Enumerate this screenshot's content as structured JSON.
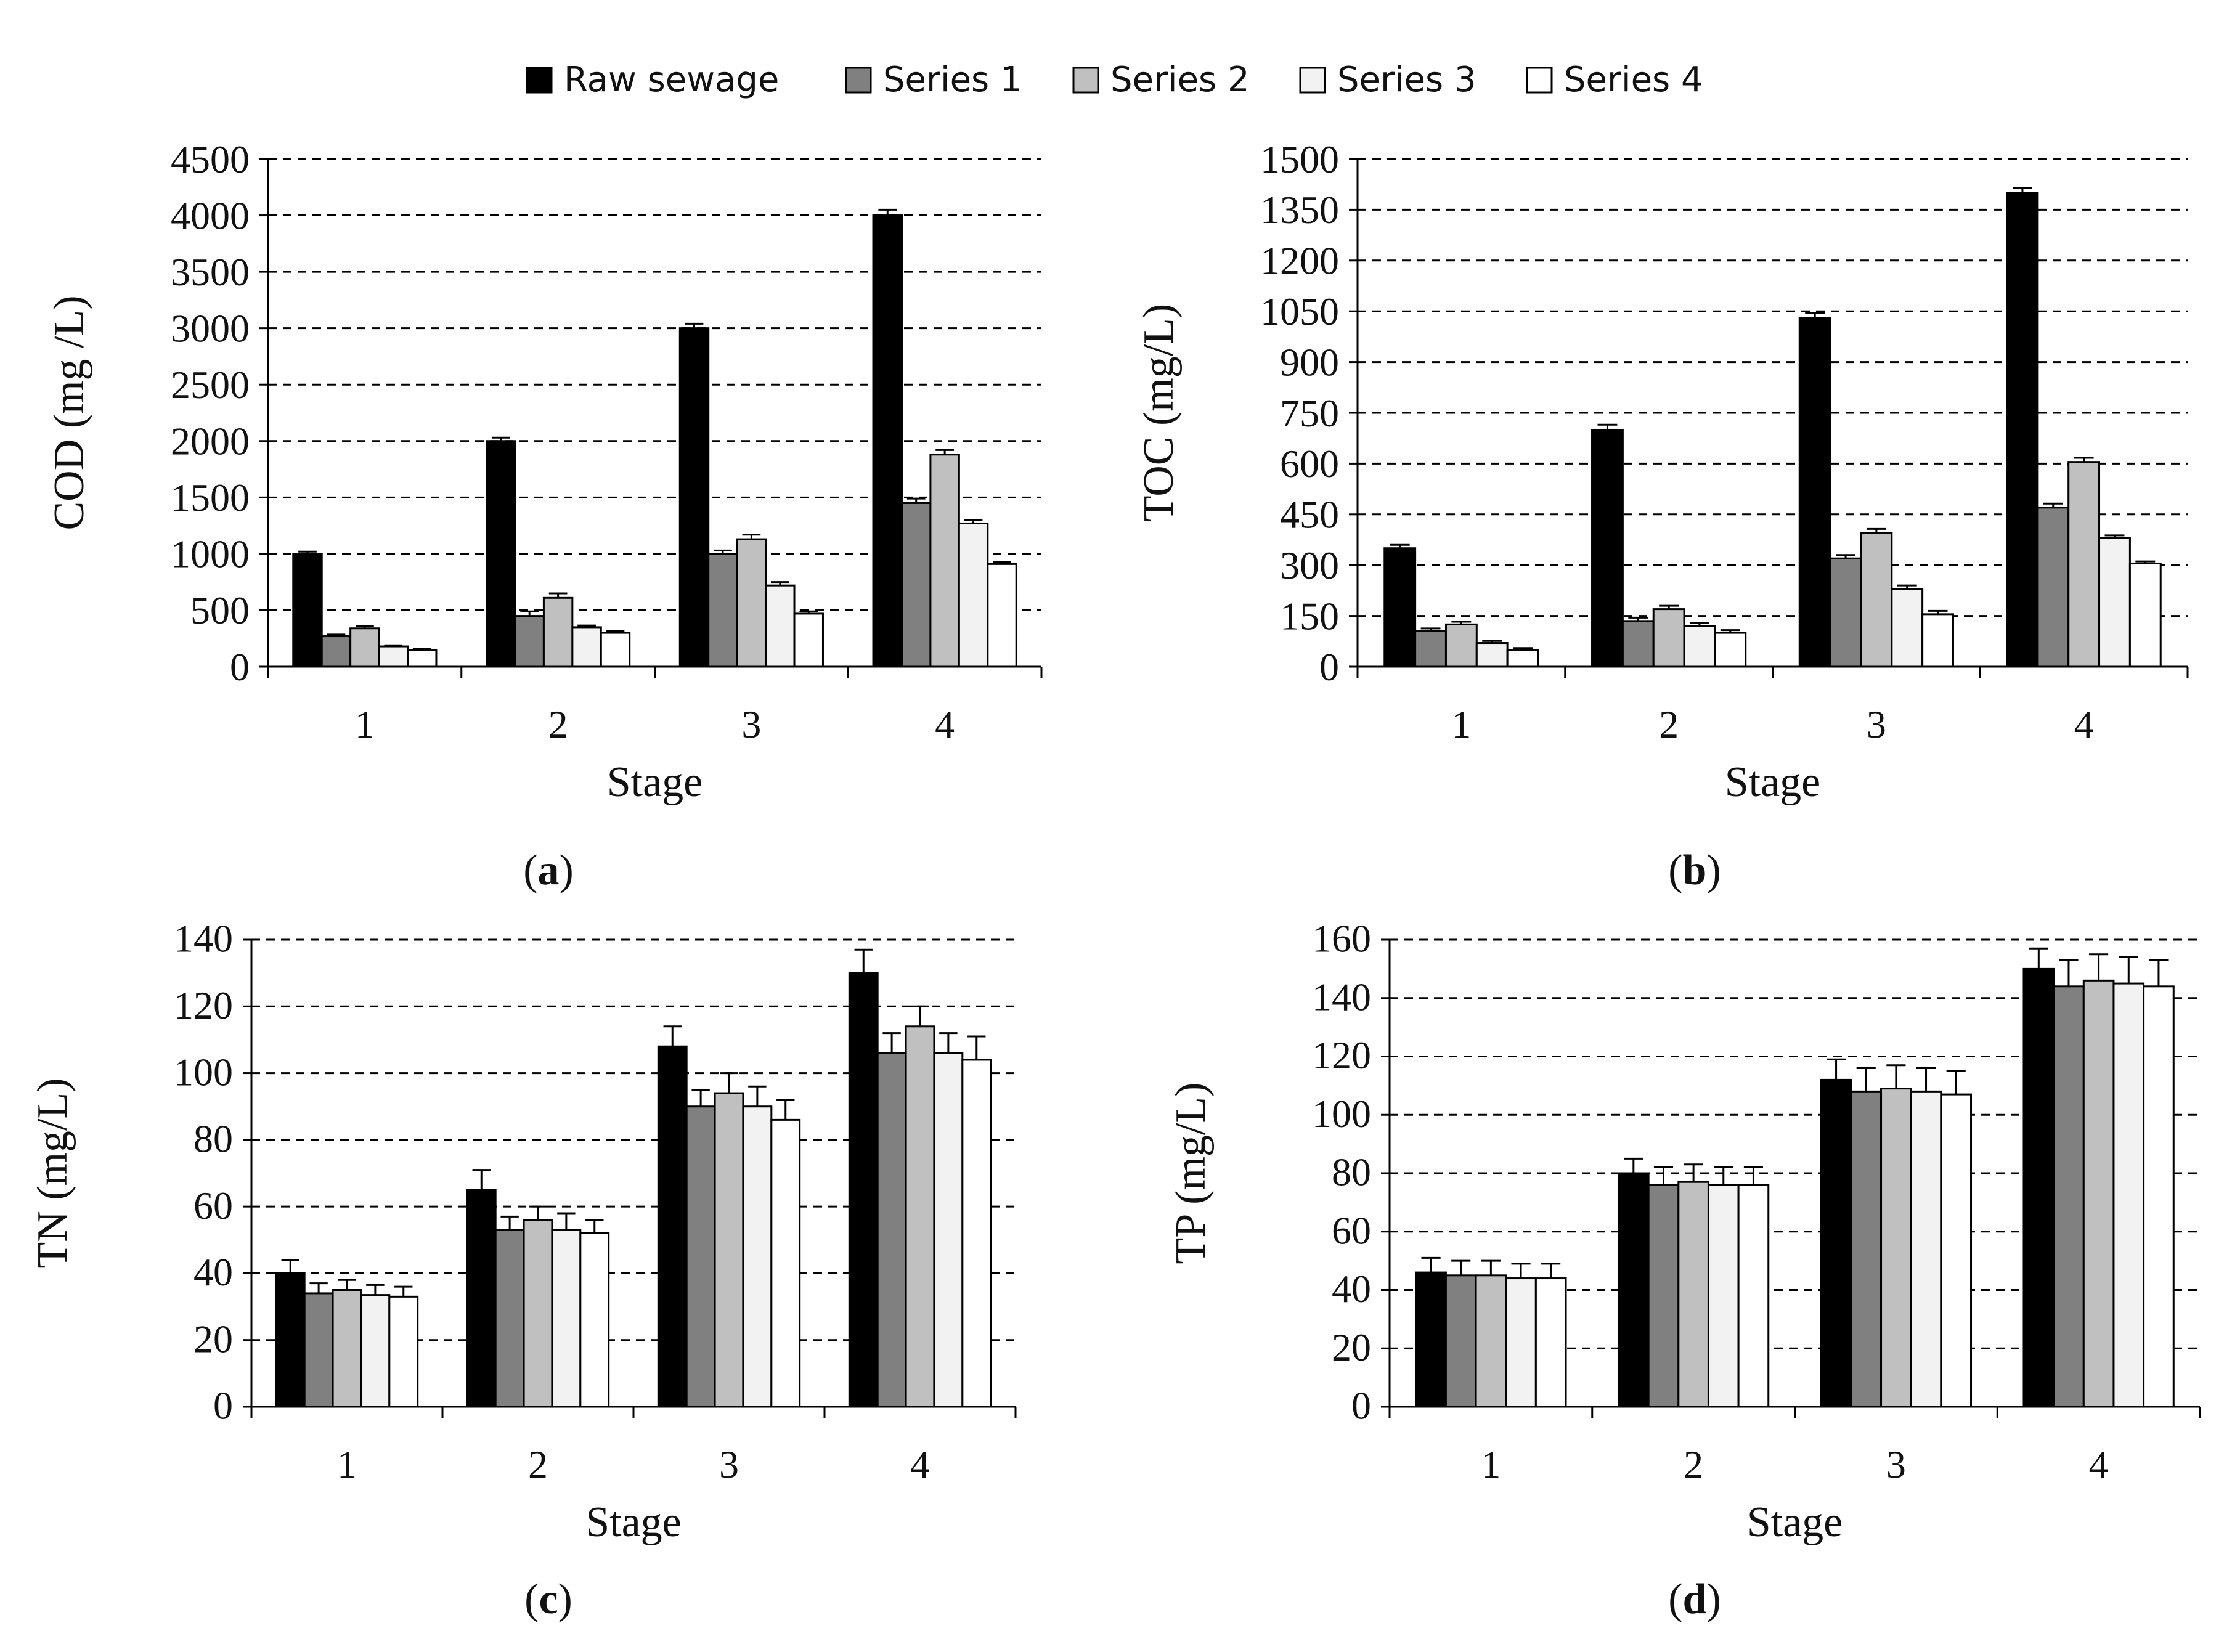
{
  "legend": {
    "items": [
      {
        "name": "Raw sewage",
        "color": "#000000"
      },
      {
        "name": "Series 1",
        "color": "#808080"
      },
      {
        "name": "Series 2",
        "color": "#c0c0c0"
      },
      {
        "name": "Series 3",
        "color": "#f2f2f2"
      },
      {
        "name": "Series 4",
        "color": "#ffffff"
      }
    ]
  },
  "chart_data": [
    {
      "type": "bar",
      "panel": "a",
      "panel_label": {
        "open": "(",
        "letter": "a",
        "close": ")"
      },
      "xlabel": "Stage",
      "ylabel": "COD (mg /L)",
      "categories": [
        "1",
        "2",
        "3",
        "4"
      ],
      "ylim": [
        0,
        4500
      ],
      "yticks": [
        0,
        500,
        1000,
        1500,
        2000,
        2500,
        3000,
        3500,
        4000,
        4500
      ],
      "gridlines": "dashed",
      "series": [
        {
          "name": "Raw sewage",
          "values": [
            1000,
            2000,
            3000,
            4000
          ],
          "errors": [
            20,
            30,
            40,
            50
          ]
        },
        {
          "name": "Series 1",
          "values": [
            270,
            450,
            1000,
            1450
          ],
          "errors": [
            15,
            40,
            30,
            40
          ]
        },
        {
          "name": "Series 2",
          "values": [
            340,
            610,
            1130,
            1880
          ],
          "errors": [
            20,
            40,
            40,
            40
          ]
        },
        {
          "name": "Series 3",
          "values": [
            180,
            350,
            720,
            1270
          ],
          "errors": [
            10,
            15,
            30,
            30
          ]
        },
        {
          "name": "Series 4",
          "values": [
            150,
            300,
            470,
            910
          ],
          "errors": [
            10,
            15,
            20,
            20
          ]
        }
      ]
    },
    {
      "type": "bar",
      "panel": "b",
      "panel_label": {
        "open": "(",
        "letter": "b",
        "close": ")"
      },
      "xlabel": "Stage",
      "ylabel": "TOC (mg/L)",
      "categories": [
        "1",
        "2",
        "3",
        "4"
      ],
      "ylim": [
        0,
        1500
      ],
      "yticks": [
        0,
        150,
        300,
        450,
        600,
        750,
        900,
        1050,
        1200,
        1350,
        1500
      ],
      "gridlines": "dashed",
      "series": [
        {
          "name": "Raw sewage",
          "values": [
            350,
            700,
            1030,
            1400
          ],
          "errors": [
            10,
            15,
            15,
            15
          ]
        },
        {
          "name": "Series 1",
          "values": [
            105,
            135,
            320,
            470
          ],
          "errors": [
            8,
            10,
            10,
            12
          ]
        },
        {
          "name": "Series 2",
          "values": [
            125,
            170,
            395,
            605
          ],
          "errors": [
            8,
            10,
            12,
            12
          ]
        },
        {
          "name": "Series 3",
          "values": [
            70,
            120,
            230,
            380
          ],
          "errors": [
            6,
            10,
            10,
            8
          ]
        },
        {
          "name": "Series 4",
          "values": [
            50,
            100,
            155,
            305
          ],
          "errors": [
            5,
            8,
            10,
            6
          ]
        }
      ]
    },
    {
      "type": "bar",
      "panel": "c",
      "panel_label": {
        "open": "(",
        "letter": "c",
        "close": ")"
      },
      "xlabel": "Stage",
      "ylabel": "TN (mg/L)",
      "categories": [
        "1",
        "2",
        "3",
        "4"
      ],
      "ylim": [
        0,
        140
      ],
      "yticks": [
        0,
        20,
        40,
        60,
        80,
        100,
        120,
        140
      ],
      "gridlines": "dashed",
      "series": [
        {
          "name": "Raw sewage",
          "values": [
            40,
            65,
            108,
            130
          ],
          "errors": [
            4,
            6,
            6,
            7
          ]
        },
        {
          "name": "Series 1",
          "values": [
            34,
            53,
            90,
            106
          ],
          "errors": [
            3,
            4,
            5,
            6
          ]
        },
        {
          "name": "Series 2",
          "values": [
            35,
            56,
            94,
            114
          ],
          "errors": [
            3,
            4,
            6,
            6
          ]
        },
        {
          "name": "Series 3",
          "values": [
            33.5,
            53,
            90,
            106
          ],
          "errors": [
            3,
            5,
            6,
            6
          ]
        },
        {
          "name": "Series 4",
          "values": [
            33,
            52,
            86,
            104
          ],
          "errors": [
            3,
            4,
            6,
            7
          ]
        }
      ]
    },
    {
      "type": "bar",
      "panel": "d",
      "panel_label": {
        "open": "(",
        "letter": "d",
        "close": ")"
      },
      "xlabel": "Stage",
      "ylabel": "TP (mg/L)",
      "categories": [
        "1",
        "2",
        "3",
        "4"
      ],
      "ylim": [
        0,
        160
      ],
      "yticks": [
        0,
        20,
        40,
        60,
        80,
        100,
        120,
        140,
        160
      ],
      "gridlines": "dashed",
      "series": [
        {
          "name": "Raw sewage",
          "values": [
            46,
            80,
            112,
            150
          ],
          "errors": [
            5,
            5,
            7,
            7
          ]
        },
        {
          "name": "Series 1",
          "values": [
            45,
            76,
            108,
            144
          ],
          "errors": [
            5,
            6,
            8,
            9
          ]
        },
        {
          "name": "Series 2",
          "values": [
            45,
            77,
            109,
            146
          ],
          "errors": [
            5,
            6,
            8,
            9
          ]
        },
        {
          "name": "Series 3",
          "values": [
            44,
            76,
            108,
            145
          ],
          "errors": [
            5,
            6,
            8,
            9
          ]
        },
        {
          "name": "Series 4",
          "values": [
            44,
            76,
            107,
            144
          ],
          "errors": [
            5,
            6,
            8,
            9
          ]
        }
      ]
    }
  ]
}
